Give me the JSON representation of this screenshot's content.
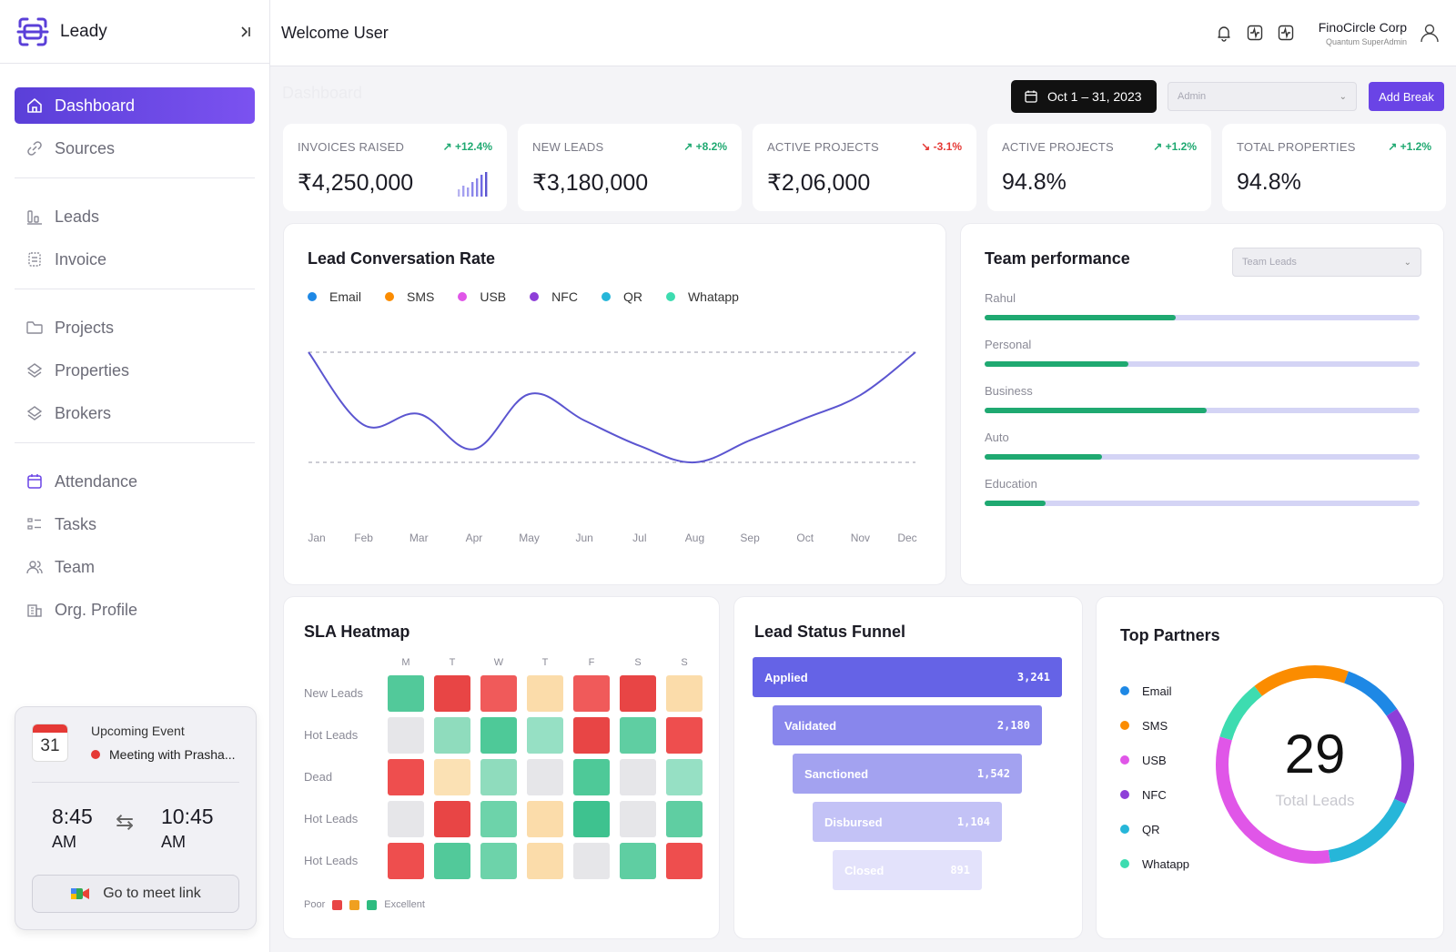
{
  "app": {
    "name": "Leady"
  },
  "sidebar": {
    "items": [
      {
        "label": "Dashboard",
        "icon": "home-icon",
        "active": true
      },
      {
        "label": "Sources",
        "icon": "link-icon"
      },
      {
        "label": "Leads",
        "icon": "bar-chart-icon"
      },
      {
        "label": "Invoice",
        "icon": "invoice-icon"
      },
      {
        "label": "Projects",
        "icon": "folder-icon"
      },
      {
        "label": "Properties",
        "icon": "layers-icon"
      },
      {
        "label": "Brokers",
        "icon": "layers-icon"
      },
      {
        "label": "Attendance",
        "icon": "calendar-icon"
      },
      {
        "label": "Tasks",
        "icon": "list-icon"
      },
      {
        "label": "Team",
        "icon": "users-icon"
      },
      {
        "label": "Org. Profile",
        "icon": "building-icon"
      }
    ]
  },
  "event": {
    "day": "31",
    "title": "Upcoming Event",
    "subtitle": "Meeting with Prasha...",
    "start_time": "8:45",
    "start_ampm": "AM",
    "end_time": "10:45",
    "end_ampm": "AM",
    "meet_label": "Go to meet link"
  },
  "header": {
    "welcome": "Welcome User",
    "org_name": "FinoCircle Corp",
    "org_role": "Quantum SuperAdmin"
  },
  "toolbar": {
    "page_title": "Dashboard",
    "date_range": "Oct 1 – 31, 2023",
    "role_placeholder": "Admin",
    "add_break": "Add Break"
  },
  "kpis": [
    {
      "label": "INVOICES RAISED",
      "change": "+12.4%",
      "trend": "up",
      "value": "₹4,250,000"
    },
    {
      "label": "NEW LEADS",
      "change": "+8.2%",
      "trend": "up",
      "value": "₹3,180,000"
    },
    {
      "label": "ACTIVE PROJECTS",
      "change": "-3.1%",
      "trend": "down",
      "value": "₹2,06,000"
    },
    {
      "label": "ACTIVE PROJECTS",
      "change": "+1.2%",
      "trend": "up",
      "value": "94.8%"
    },
    {
      "label": "TOTAL PROPERTIES",
      "change": "+1.2%",
      "trend": "up",
      "value": "94.8%"
    }
  ],
  "lead_chart": {
    "title": "Lead Conversation Rate",
    "legend": [
      {
        "name": "Email",
        "color": "#1e88e5"
      },
      {
        "name": "SMS",
        "color": "#fb8c00"
      },
      {
        "name": "USB",
        "color": "#e056e8"
      },
      {
        "name": "NFC",
        "color": "#8e3fd8"
      },
      {
        "name": "QR",
        "color": "#26b6d9"
      },
      {
        "name": "Whatapp",
        "color": "#3ddcb0"
      }
    ]
  },
  "chart_data": {
    "type": "line",
    "categories": [
      "Jan",
      "Feb",
      "Mar",
      "Apr",
      "May",
      "Jun",
      "Jul",
      "Aug",
      "Sep",
      "Oct",
      "Nov",
      "Dec"
    ],
    "values": [
      100,
      34,
      44,
      12,
      62,
      38,
      15,
      0,
      20,
      40,
      61,
      100
    ],
    "ylim": [
      0,
      100
    ],
    "grid": "dashed reference lines at top and bottom",
    "series_color": "#5b55d0"
  },
  "team_performance": {
    "title": "Team performance",
    "select_placeholder": "Team Leads",
    "rows": [
      {
        "label": "Rahul",
        "value": 0.44
      },
      {
        "label": "Personal",
        "value": 0.33
      },
      {
        "label": "Business",
        "value": 0.51
      },
      {
        "label": "Auto",
        "value": 0.27
      },
      {
        "label": "Education",
        "value": 0.14
      }
    ]
  },
  "heatmap": {
    "title": "SLA Heatmap",
    "days": [
      "M",
      "T",
      "W",
      "T",
      "F",
      "S",
      "S"
    ],
    "rows": [
      {
        "label": "New Leads",
        "cells": [
          "#52c99a",
          "#e84545",
          "#f05a5a",
          "#fbdcaa",
          "#f05a5a",
          "#e84545",
          "#fbdcaa"
        ]
      },
      {
        "label": "Hot Leads",
        "cells": [
          "#e6e6e9",
          "#8fdcbd",
          "#4ec998",
          "#96e0c4",
          "#e84545",
          "#5fcea2",
          "#ee4e4e"
        ]
      },
      {
        "label": "Dead",
        "cells": [
          "#ee4e4e",
          "#fbe1b4",
          "#8fdcbd",
          "#e6e6e9",
          "#4ec998",
          "#e6e6e9",
          "#96e0c4"
        ]
      },
      {
        "label": "Hot Leads",
        "cells": [
          "#e6e6e9",
          "#e84545",
          "#6dd3aa",
          "#fbdcaa",
          "#3ec28f",
          "#e6e6e9",
          "#5fcea2"
        ]
      },
      {
        "label": "Hot Leads",
        "cells": [
          "#ee4e4e",
          "#52c99a",
          "#6dd3aa",
          "#fbdcaa",
          "#e6e6e9",
          "#5fcea2",
          "#ee4e4e"
        ]
      }
    ],
    "legend_poor": "Poor",
    "legend_excellent": "Excellent",
    "legend_colors": [
      "#e84545",
      "#f0a020",
      "#2ebc80"
    ]
  },
  "funnel": {
    "title": "Lead Status Funnel",
    "stages": [
      {
        "label": "Applied",
        "value": "3,241",
        "color": "#6563e6",
        "text": "#ffffff"
      },
      {
        "label": "Validated",
        "value": "2,180",
        "color": "#8886ec",
        "text": "#ffffff"
      },
      {
        "label": "Sanctioned",
        "value": "1,542",
        "color": "#a3a2f0",
        "text": "#ffffff"
      },
      {
        "label": "Disbursed",
        "value": "1,104",
        "color": "#c3c2f6",
        "text": "#ffffff"
      },
      {
        "label": "Closed",
        "value": "891",
        "color": "#e3e2fb",
        "text": "#ffffff"
      }
    ]
  },
  "partners": {
    "title": "Top Partners",
    "total": "29",
    "total_label": "Total Leads",
    "items": [
      {
        "name": "Email",
        "color": "#1e88e5",
        "share": 0.1
      },
      {
        "name": "SMS",
        "color": "#fb8c00",
        "share": 0.16
      },
      {
        "name": "USB",
        "color": "#e056e8",
        "share": 0.32
      },
      {
        "name": "NFC",
        "color": "#8e3fd8",
        "share": 0.16
      },
      {
        "name": "QR",
        "color": "#26b6d9",
        "share": 0.16
      },
      {
        "name": "Whatapp",
        "color": "#3ddcb0",
        "share": 0.1
      }
    ]
  }
}
